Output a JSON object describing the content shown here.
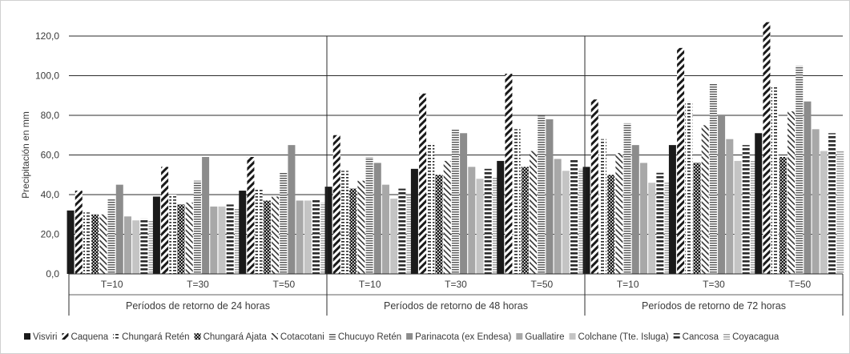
{
  "chart_data": {
    "type": "bar",
    "ylabel": "Precipitación en mm",
    "ylim": [
      0,
      120
    ],
    "yticks": [
      "0,0",
      "20,0",
      "40,0",
      "60,0",
      "80,0",
      "100,0",
      "120,0"
    ],
    "grid": true,
    "legend_position": "bottom",
    "groups": [
      {
        "label": "Períodos de retorno de 24 horas",
        "categories": [
          "T=10",
          "T=30",
          "T=50"
        ]
      },
      {
        "label": "Períodos de retorno de 48 horas",
        "categories": [
          "T=10",
          "T=30",
          "T=50"
        ]
      },
      {
        "label": "Períodos de retorno de 72 horas",
        "categories": [
          "T=10",
          "T=30",
          "T=50"
        ]
      }
    ],
    "series": [
      {
        "name": "Visviri",
        "color": "#1a1a1a",
        "pattern": "solid",
        "values": [
          32,
          39,
          42,
          44,
          53,
          57,
          54,
          65,
          71
        ]
      },
      {
        "name": "Caquena",
        "color": "#1a1a1a",
        "pattern": "wdiag",
        "values": [
          42,
          54,
          59,
          70,
          91,
          101,
          88,
          114,
          127
        ]
      },
      {
        "name": "Chungará Retén",
        "color": "#2a2a2a",
        "pattern": "dash",
        "values": [
          31,
          40,
          43,
          52,
          66,
          73,
          68,
          87,
          95
        ]
      },
      {
        "name": "Chungará Ajata",
        "color": "#1a1a1a",
        "pattern": "check",
        "values": [
          30,
          35,
          37,
          43,
          50,
          54,
          50,
          56,
          59
        ]
      },
      {
        "name": "Cotacotani",
        "color": "#333333",
        "pattern": "ndiag",
        "values": [
          30,
          36,
          39,
          47,
          57,
          62,
          61,
          75,
          82
        ]
      },
      {
        "name": "Chucuyo Retén",
        "color": "#555555",
        "pattern": "hline",
        "values": [
          38,
          47,
          51,
          59,
          73,
          80,
          76,
          96,
          105
        ]
      },
      {
        "name": "Parinacota (ex Endesa)",
        "color": "#8c8c8c",
        "pattern": "solid",
        "values": [
          45,
          59,
          65,
          56,
          71,
          78,
          65,
          80,
          87
        ]
      },
      {
        "name": "Guallatire",
        "color": "#a8a8a8",
        "pattern": "solid",
        "values": [
          29,
          34,
          37,
          45,
          54,
          58,
          56,
          68,
          73
        ]
      },
      {
        "name": "Colchane (Tte. Isluga)",
        "color": "#c4c4c4",
        "pattern": "solid",
        "values": [
          27,
          34,
          37,
          38,
          48,
          52,
          46,
          57,
          62
        ]
      },
      {
        "name": "Cancosa",
        "color": "#2a2a2a",
        "pattern": "thick",
        "values": [
          28,
          35,
          38,
          43,
          53,
          58,
          51,
          65,
          71
        ]
      },
      {
        "name": "Coyacagua",
        "color": "#9a9a9a",
        "pattern": "hline",
        "values": [
          27,
          33,
          36,
          40,
          49,
          53,
          46,
          57,
          62
        ]
      }
    ]
  }
}
